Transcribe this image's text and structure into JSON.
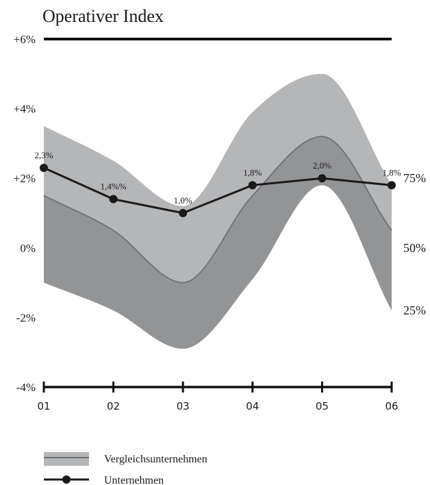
{
  "chart_data": {
    "type": "line",
    "title": "Operativer Index",
    "categories": [
      "01",
      "02",
      "03",
      "04",
      "05",
      "06"
    ],
    "y_ticks": [
      "-4%",
      "-2%",
      "0%",
      "+2%",
      "+4%",
      "+6%"
    ],
    "ylim": [
      -4,
      6
    ],
    "right_ticks": [
      {
        "label": "75%",
        "value": 2.0
      },
      {
        "label": "50%",
        "value": 0.0
      },
      {
        "label": "25%",
        "value": -1.8
      }
    ],
    "series": [
      {
        "name": "Unternehmen",
        "values": [
          2.3,
          1.4,
          1.0,
          1.8,
          2.0,
          1.8
        ],
        "labels": [
          "2,3%",
          "1,4%%",
          "1,0%",
          "1,8%",
          "2,0%",
          "1,8%"
        ],
        "color": "#1a1a1a"
      }
    ],
    "bands": {
      "name": "Vergleichsunternehmen",
      "upper": [
        3.5,
        2.5,
        1.2,
        3.9,
        5.0,
        1.8
      ],
      "median": [
        1.5,
        0.5,
        -1.0,
        1.5,
        3.2,
        0.5
      ],
      "lower": [
        -1.0,
        -1.8,
        -2.9,
        -0.9,
        1.8,
        -1.8
      ],
      "outer_color": "#b5b6b8",
      "inner_color": "#939496",
      "median_color": "#6f7072"
    },
    "reference_line": 6,
    "grid": false,
    "legend_position": "bottom-left"
  },
  "legend": {
    "items": [
      {
        "label": "Vergleichsunternehmen"
      },
      {
        "label": "Unternehmen"
      }
    ]
  }
}
